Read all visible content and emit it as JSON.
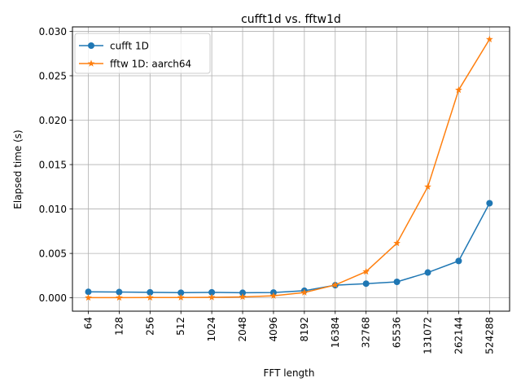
{
  "chart_data": {
    "type": "line",
    "title": "cufft1d vs. fftw1d",
    "xlabel": "FFT length",
    "ylabel": "Elapsed time (s)",
    "categories": [
      "64",
      "128",
      "256",
      "512",
      "1024",
      "2048",
      "4096",
      "8192",
      "16384",
      "32768",
      "65536",
      "131072",
      "262144",
      "524288"
    ],
    "ylim": [
      -0.0015,
      0.0305
    ],
    "yticks": [
      0.0,
      0.005,
      0.01,
      0.015,
      0.02,
      0.025,
      0.03
    ],
    "ytick_labels": [
      "0.000",
      "0.005",
      "0.010",
      "0.015",
      "0.020",
      "0.025",
      "0.030"
    ],
    "grid": true,
    "legend_position": "top-left",
    "series": [
      {
        "name": "cufft 1D",
        "color": "#1f77b4",
        "marker": "circle",
        "values": [
          0.00068,
          0.00065,
          0.00062,
          0.00058,
          0.00062,
          0.00057,
          0.0006,
          0.0008,
          0.00142,
          0.0016,
          0.0018,
          0.00285,
          0.00415,
          0.01065
        ]
      },
      {
        "name": "fftw 1D: aarch64",
        "color": "#ff7f0e",
        "marker": "star",
        "values": [
          2e-05,
          2e-05,
          3e-05,
          4e-05,
          6e-05,
          0.00011,
          0.00023,
          0.0006,
          0.00145,
          0.00295,
          0.00615,
          0.0125,
          0.0234,
          0.0291
        ]
      }
    ]
  }
}
